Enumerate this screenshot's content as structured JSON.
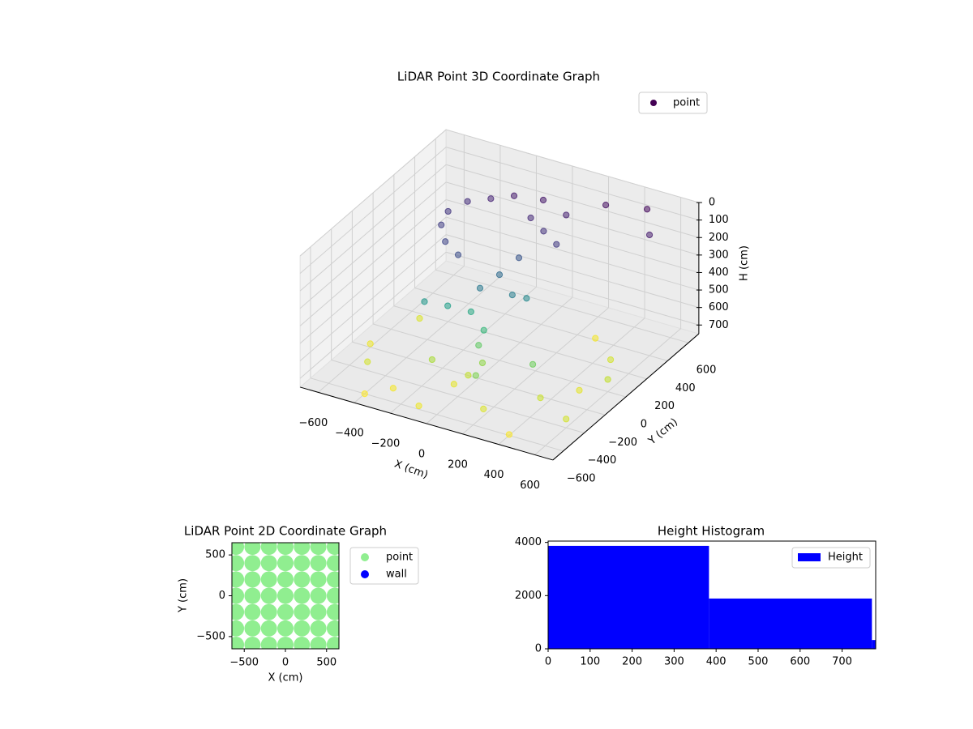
{
  "chart_data": [
    {
      "type": "scatter3d",
      "title": "LiDAR Point 3D Coordinate Graph",
      "xlabel": "X (cm)",
      "ylabel": "Y (cm)",
      "zlabel": "H (cm)",
      "colormap": "viridis",
      "legend": "upper right",
      "grid": true,
      "xlim": [
        -700,
        700
      ],
      "ylim": [
        -700,
        700
      ],
      "zlim": [
        750,
        0
      ],
      "xticks": [
        {
          "value": -600,
          "label": "−600"
        },
        {
          "value": -400,
          "label": "−400"
        },
        {
          "value": -200,
          "label": "−200"
        },
        0,
        200,
        400,
        600
      ],
      "yticks": [
        {
          "value": -600,
          "label": "−600"
        },
        {
          "value": -400,
          "label": "−400"
        },
        {
          "value": -200,
          "label": "−200"
        },
        0,
        200,
        400,
        600
      ],
      "zticks": [
        0,
        100,
        200,
        300,
        400,
        500,
        600,
        700
      ],
      "series": [
        {
          "name": "point",
          "x": [
            -350,
            -250,
            -150,
            0,
            150,
            -400,
            -380,
            -300,
            -200,
            0,
            100,
            200,
            50,
            0,
            -50,
            100,
            150,
            -300,
            -200,
            -100,
            0,
            0,
            50,
            0,
            -50,
            300,
            500,
            600,
            -500,
            -300,
            -100,
            200,
            400,
            500,
            500,
            300,
            -500,
            -600,
            -200,
            100,
            300,
            -400,
            400,
            600,
            600
          ],
          "y": [
            300,
            350,
            400,
            420,
            380,
            200,
            100,
            0,
            -50,
            300,
            250,
            200,
            100,
            0,
            -100,
            -50,
            0,
            -200,
            -150,
            -100,
            -150,
            -200,
            -250,
            -300,
            -350,
            500,
            550,
            400,
            -400,
            -500,
            -600,
            -500,
            -300,
            -100,
            200,
            400,
            100,
            -200,
            -300,
            -400,
            -200,
            -600,
            -600,
            -400,
            0
          ],
          "z": [
            100,
            80,
            60,
            50,
            70,
            120,
            140,
            160,
            180,
            90,
            110,
            130,
            200,
            260,
            300,
            320,
            350,
            400,
            420,
            450,
            500,
            560,
            620,
            680,
            720,
            30,
            20,
            60,
            700,
            740,
            730,
            710,
            690,
            720,
            700,
            740,
            710,
            730,
            650,
            600,
            580,
            750,
            745,
            700,
            680
          ]
        }
      ]
    },
    {
      "type": "scatter",
      "title": "LiDAR Point 2D Coordinate Graph",
      "xlabel": "X (cm)",
      "ylabel": "Y (cm)",
      "legend": "outside right",
      "xlim": [
        -650,
        650
      ],
      "ylim": [
        -650,
        650
      ],
      "xticks": [
        {
          "value": -500,
          "label": "−500"
        },
        0,
        500
      ],
      "yticks": [
        {
          "value": -500,
          "label": "−500"
        },
        0,
        500
      ],
      "series": [
        {
          "name": "point",
          "color": "#90ee90",
          "x": [
            -600,
            -400,
            -200,
            0,
            200,
            400,
            600,
            -600,
            -400,
            -200,
            0,
            200,
            400,
            600,
            -600,
            -400,
            -200,
            0,
            200,
            400,
            600,
            -600,
            -400,
            -200,
            0,
            200,
            400,
            600,
            -600,
            -400,
            -200,
            0,
            200,
            400,
            600,
            -600,
            -400,
            -200,
            0,
            200,
            400,
            600,
            -600,
            -400,
            -200,
            0,
            200,
            400,
            600
          ],
          "y": [
            -600,
            -600,
            -600,
            -600,
            -600,
            -600,
            -600,
            -400,
            -400,
            -400,
            -400,
            -400,
            -400,
            -400,
            -200,
            -200,
            -200,
            -200,
            -200,
            -200,
            -200,
            0,
            0,
            0,
            0,
            0,
            0,
            0,
            200,
            200,
            200,
            200,
            200,
            200,
            200,
            400,
            400,
            400,
            400,
            400,
            400,
            400,
            600,
            600,
            600,
            600,
            600,
            600,
            600
          ]
        },
        {
          "name": "wall",
          "color": "#0000ff",
          "x": [],
          "y": []
        }
      ]
    },
    {
      "type": "histogram",
      "title": "Height Histogram",
      "label": "Height",
      "color": "#0000ff",
      "legend": "upper right",
      "bins": [
        0,
        383,
        771,
        780
      ],
      "counts": [
        3870,
        1890,
        330
      ],
      "xlim": [
        0,
        780
      ],
      "ylim": [
        0,
        4050
      ],
      "xticks": [
        0,
        100,
        200,
        300,
        400,
        500,
        600,
        700
      ],
      "yticks": [
        0,
        2000,
        4000
      ]
    }
  ]
}
